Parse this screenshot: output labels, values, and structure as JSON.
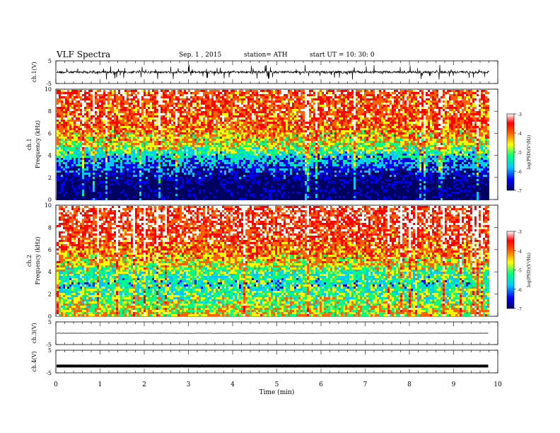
{
  "header": {
    "title": "VLF Spectra",
    "date": "Sep. 1 , 2015",
    "station": "station= ATH",
    "start": "start UT =   10: 30: 0"
  },
  "colors": {
    "spectrogram_scale": [
      "#000060",
      "#0000ff",
      "#00c8ff",
      "#00ff80",
      "#ffff00",
      "#ff6000",
      "#ff0000",
      "#ffffff"
    ]
  },
  "chart_data": [
    {
      "type": "line",
      "panel": "ch1-waveform",
      "ylabel": "ch.1(V)",
      "xlim": [
        0,
        10
      ],
      "ylim": [
        -5,
        5
      ],
      "yticks": [
        "5",
        "-5"
      ],
      "x_end": 9.8,
      "approx_level": 0,
      "approx_noise_amplitude": 3
    },
    {
      "type": "heatmap",
      "panel": "ch1-spectrogram",
      "ylabel": "ch.1",
      "ylabel2": "Frequency (kHz)",
      "xlim": [
        0,
        10
      ],
      "ylim": [
        0,
        10
      ],
      "yticks": [
        "0",
        "2",
        "4",
        "6",
        "8",
        "10"
      ],
      "x_end": 9.8,
      "colorbar": {
        "label": "log(PSD)(V²/Hz)",
        "range": [
          -7,
          -3
        ],
        "ticks": [
          "-3",
          "-4",
          "-5",
          "-6",
          "-7"
        ]
      },
      "approx_log_psd_profile": [
        {
          "freq_khz": 0,
          "log_psd": -7
        },
        {
          "freq_khz": 1.5,
          "log_psd": -6.9
        },
        {
          "freq_khz": 3,
          "log_psd": -6.2
        },
        {
          "freq_khz": 4,
          "log_psd": -5.6
        },
        {
          "freq_khz": 5,
          "log_psd": -4.8
        },
        {
          "freq_khz": 7,
          "log_psd": -4.1
        },
        {
          "freq_khz": 10,
          "log_psd": -3.9
        }
      ]
    },
    {
      "type": "heatmap",
      "panel": "ch2-spectrogram",
      "ylabel": "ch.2",
      "ylabel2": "Frequency (kHz)",
      "xlim": [
        0,
        10
      ],
      "ylim": [
        0,
        10
      ],
      "yticks": [
        "0",
        "2",
        "4",
        "6",
        "8",
        "10"
      ],
      "x_end": 9.8,
      "colorbar": {
        "label": "log(PSD)(V²/Hz)",
        "range": [
          -7,
          -3
        ],
        "ticks": [
          "-3",
          "-4",
          "-5",
          "-6",
          "-7"
        ]
      },
      "approx_log_psd_profile": [
        {
          "freq_khz": 0,
          "log_psd": -4.6
        },
        {
          "freq_khz": 1.5,
          "log_psd": -5.0
        },
        {
          "freq_khz": 3,
          "log_psd": -5.5
        },
        {
          "freq_khz": 4,
          "log_psd": -5.2
        },
        {
          "freq_khz": 5,
          "log_psd": -4.6
        },
        {
          "freq_khz": 7,
          "log_psd": -3.9
        },
        {
          "freq_khz": 10,
          "log_psd": -3.7
        }
      ]
    },
    {
      "type": "line",
      "panel": "ch3-waveform",
      "ylabel": "ch.3(V)",
      "xlim": [
        0,
        10
      ],
      "ylim": [
        -5,
        5
      ],
      "yticks": [
        "5",
        "-5"
      ],
      "x_end": 9.8,
      "approx_level": 0,
      "approx_noise_amplitude": 0.2
    },
    {
      "type": "line",
      "panel": "ch4-waveform",
      "ylabel": "ch.4(V)",
      "xlabel": "Time (min)",
      "xlim": [
        0,
        10
      ],
      "ylim": [
        -5,
        5
      ],
      "yticks": [
        "5",
        "-5"
      ],
      "xticks": [
        "0",
        "1",
        "2",
        "3",
        "4",
        "5",
        "6",
        "7",
        "8",
        "9",
        "10"
      ],
      "x_end": 9.8,
      "approx_level": -2,
      "approx_noise_amplitude": 0.1
    }
  ]
}
